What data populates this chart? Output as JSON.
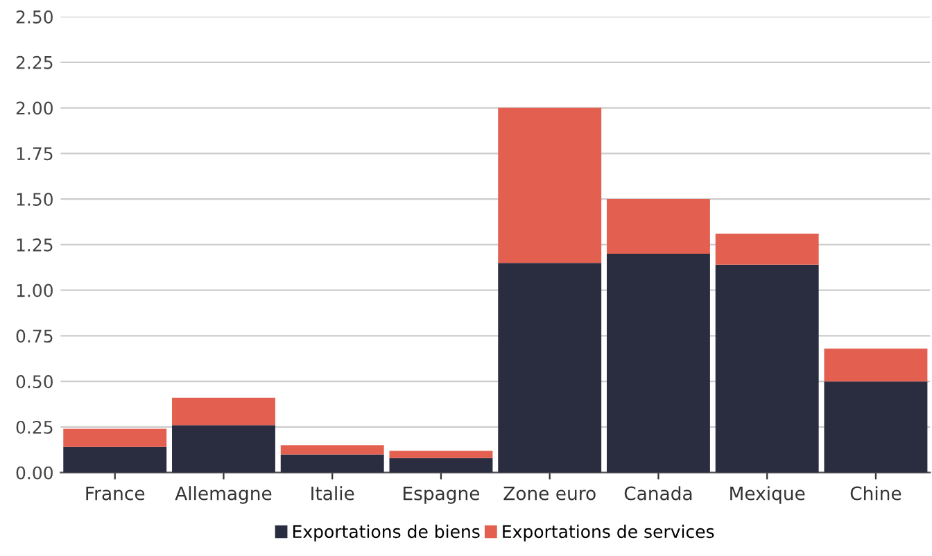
{
  "chart_data": {
    "type": "bar",
    "stacked": true,
    "categories": [
      "France",
      "Allemagne",
      "Italie",
      "Espagne",
      "Zone euro",
      "Canada",
      "Mexique",
      "Chine"
    ],
    "series": [
      {
        "name": "Exportations de biens",
        "color": "#2a2d40",
        "values": [
          0.14,
          0.26,
          0.1,
          0.08,
          1.15,
          1.2,
          1.14,
          0.5
        ]
      },
      {
        "name": "Exportations de services",
        "color": "#e35f4f",
        "values": [
          0.1,
          0.15,
          0.05,
          0.04,
          0.85,
          0.3,
          0.17,
          0.18
        ]
      }
    ],
    "ylim": [
      0,
      2.5
    ],
    "yticks": [
      {
        "value": 0,
        "label": "0.00"
      },
      {
        "value": 0.25,
        "label": "0.25"
      },
      {
        "value": 0.5,
        "label": "0.50"
      },
      {
        "value": 0.75,
        "label": "0.75"
      },
      {
        "value": 1,
        "label": "1.00"
      },
      {
        "value": 1.25,
        "label": "1.25"
      },
      {
        "value": 1.5,
        "label": "1.50"
      },
      {
        "value": 1.75,
        "label": "1.75"
      },
      {
        "value": 2,
        "label": "2.00"
      },
      {
        "value": 2.25,
        "label": "2.25"
      },
      {
        "value": 2.5,
        "label": "2.50"
      }
    ],
    "grid": "y",
    "legend": "bottom"
  }
}
